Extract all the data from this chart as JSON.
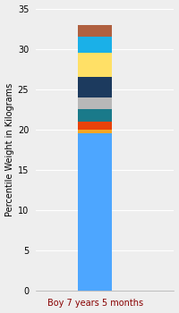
{
  "category": "Boy 7 years 5 months",
  "segments": [
    {
      "value": 19.5,
      "color": "#4da6ff"
    },
    {
      "value": 0.5,
      "color": "#f5a623"
    },
    {
      "value": 1.0,
      "color": "#e8420a"
    },
    {
      "value": 1.5,
      "color": "#1a7a8a"
    },
    {
      "value": 1.5,
      "color": "#b8b8b8"
    },
    {
      "value": 2.5,
      "color": "#1c3a5e"
    },
    {
      "value": 3.0,
      "color": "#ffe066"
    },
    {
      "value": 2.0,
      "color": "#1ab0e8"
    },
    {
      "value": 1.5,
      "color": "#b06040"
    }
  ],
  "ylabel": "Percentile Weight in Kilograms",
  "ylim": [
    0,
    35
  ],
  "yticks": [
    0,
    5,
    10,
    15,
    20,
    25,
    30,
    35
  ],
  "background_color": "#eeeeee",
  "bar_width": 0.35,
  "ylabel_fontsize": 7,
  "tick_fontsize": 7,
  "xlabel_fontsize": 7,
  "xlim": [
    -0.6,
    0.8
  ]
}
